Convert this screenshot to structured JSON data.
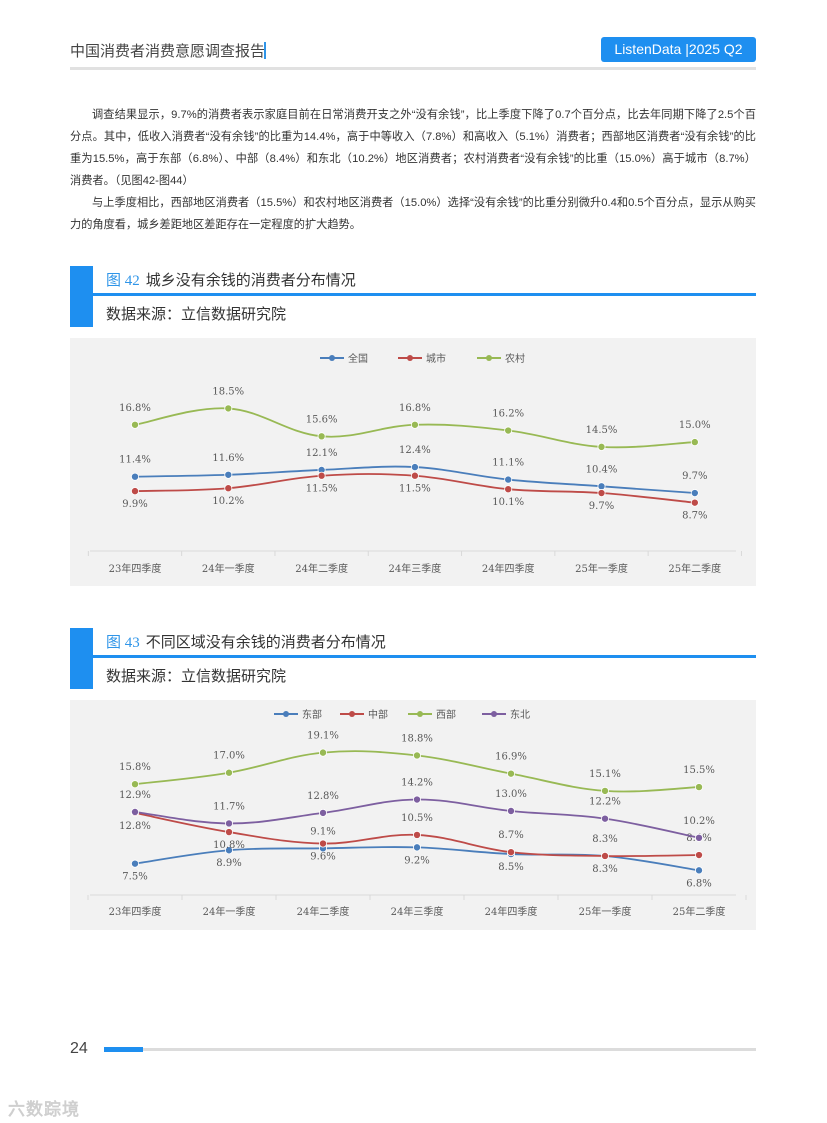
{
  "header": {
    "title": "中国消费者消费意愿调查报告",
    "badge": "ListenData |2025 Q2"
  },
  "paragraphs": [
    "调查结果显示，9.7%的消费者表示家庭目前在日常消费开支之外“没有余钱”，比上季度下降了0.7个百分点，比去年同期下降了2.5个百分点。其中，低收入消费者“没有余钱”的比重为14.4%，高于中等收入（7.8%）和高收入（5.1%）消费者；西部地区消费者“没有余钱”的比重为15.5%，高于东部（6.8%）、中部（8.4%）和东北（10.2%）地区消费者；农村消费者“没有余钱”的比重（15.0%）高于城市（8.7%）消费者。（见图42-图44）",
    "与上季度相比，西部地区消费者（15.5%）和农村地区消费者（15.0%）选择“没有余钱”的比重分别微升0.4和0.5个百分点，显示从购买力的角度看，城乡差距地区差距存在一定程度的扩大趋势。"
  ],
  "figures": [
    {
      "number": "图 42",
      "title": "城乡没有余钱的消费者分布情况",
      "source": "数据来源：立信数据研究院"
    },
    {
      "number": "图 43",
      "title": "不同区域没有余钱的消费者分布情况",
      "source": "数据来源：立信数据研究院"
    }
  ],
  "chart_data": [
    {
      "type": "line",
      "categories": [
        "23年四季度",
        "24年一季度",
        "24年二季度",
        "24年三季度",
        "24年四季度",
        "25年一季度",
        "25年二季度"
      ],
      "series": [
        {
          "name": "全国",
          "color": "#4a7ebb",
          "values": [
            11.4,
            11.6,
            12.1,
            12.4,
            11.1,
            10.4,
            9.7
          ],
          "labels": [
            "11.4%",
            "11.6%",
            "12.1%",
            "12.4%",
            "11.1%",
            "10.4%",
            "9.7%"
          ]
        },
        {
          "name": "城市",
          "color": "#be4b48",
          "values": [
            9.9,
            10.2,
            11.5,
            11.5,
            10.1,
            9.7,
            8.7
          ],
          "labels": [
            "9.9%",
            "10.2%",
            "11.5%",
            "11.5%",
            "10.1%",
            "9.7%",
            "8.7%"
          ]
        },
        {
          "name": "农村",
          "color": "#98b954",
          "values": [
            16.8,
            18.5,
            15.6,
            16.8,
            16.2,
            14.5,
            15.0
          ],
          "labels": [
            "16.8%",
            "18.5%",
            "15.6%",
            "16.8%",
            "16.2%",
            "14.5%",
            "15.0%"
          ]
        }
      ],
      "ylim": [
        7,
        20
      ],
      "legend": "top"
    },
    {
      "type": "line",
      "categories": [
        "23年四季度",
        "24年一季度",
        "24年二季度",
        "24年三季度",
        "24年四季度",
        "25年一季度",
        "25年二季度"
      ],
      "series": [
        {
          "name": "东部",
          "color": "#4a7ebb",
          "values": [
            7.5,
            8.9,
            9.1,
            9.2,
            8.5,
            8.3,
            6.8
          ],
          "labels": [
            "7.5%",
            "8.9%",
            "9.1%",
            "9.2%",
            "8.5%",
            "8.3%",
            "6.8%"
          ]
        },
        {
          "name": "中部",
          "color": "#be4b48",
          "values": [
            12.8,
            10.8,
            9.6,
            10.5,
            8.7,
            8.3,
            8.4
          ],
          "labels": [
            "12.8%",
            "10.8%",
            "9.6%",
            "10.5%",
            "8.7%",
            "8.3%",
            "8.4%"
          ]
        },
        {
          "name": "西部",
          "color": "#98b954",
          "values": [
            15.8,
            17.0,
            19.1,
            18.8,
            16.9,
            15.1,
            15.5
          ],
          "labels": [
            "15.8%",
            "17.0%",
            "19.1%",
            "18.8%",
            "16.9%",
            "15.1%",
            "15.5%"
          ]
        },
        {
          "name": "东北",
          "color": "#7d5fa0",
          "values": [
            12.9,
            11.7,
            12.8,
            14.2,
            13.0,
            12.2,
            10.2
          ],
          "labels": [
            "12.9%",
            "11.7%",
            "12.8%",
            "14.2%",
            "13.0%",
            "12.2%",
            "10.2%"
          ]
        }
      ],
      "ylim": [
        6,
        20
      ],
      "legend": "top"
    }
  ],
  "footer": {
    "page_number": "24",
    "watermark": "六数踪境"
  }
}
